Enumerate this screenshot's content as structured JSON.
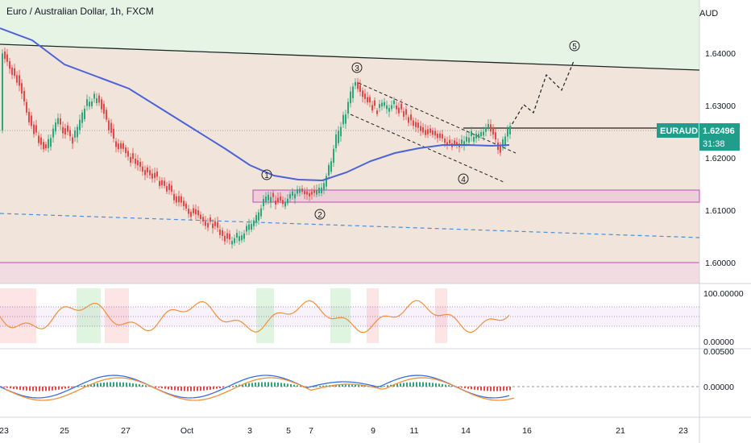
{
  "symbol_title": "Euro / Australian Dollar, 1h, FXCM",
  "currency": "AUD",
  "symbol_badge": "EURAUD",
  "last_price": "1.62496",
  "countdown": "31:38",
  "colors": {
    "resistance_zone": "#e6f4e6",
    "main_zone": "#f1e4da",
    "bottom_zone": "#f1dce2",
    "ma_line": "#4b63d8",
    "badge": "#1e9e8b",
    "bull": "#2ea57a",
    "bear": "#e04a4a",
    "rsi_line": "#f0903a",
    "rsi_overbought": "#22b022",
    "rsi_oversold": "#e01e1e",
    "macd_line": "#3a6de0",
    "signal_line": "#f0903a"
  },
  "price_axis": [
    "1.64000",
    "1.63000",
    "1.62000",
    "1.61000",
    "1.60000"
  ],
  "date_axis": [
    "23",
    "25",
    "27",
    "Oct",
    "3",
    "5",
    "7",
    "9",
    "11",
    "14",
    "16",
    "21",
    "23"
  ],
  "wave_labels": [
    "1",
    "2",
    "3",
    "4",
    "5"
  ],
  "rsi_axis": [
    "100.00000",
    "0.00000"
  ],
  "macd_axis": [
    "0.00500",
    "0.00000"
  ]
}
